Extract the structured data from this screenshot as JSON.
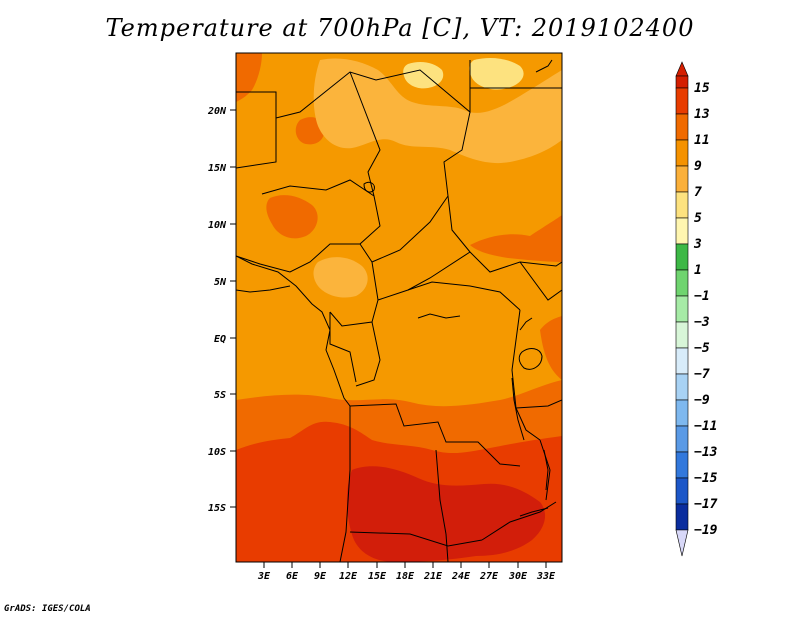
{
  "title": "Temperature at 700hPa [C], VT: 2019102400",
  "credit": "GrADS: IGES/COLA",
  "map": {
    "lat_labels": [
      "20N",
      "15N",
      "10N",
      "5N",
      "EQ",
      "5S",
      "10S",
      "15S"
    ],
    "lon_labels": [
      "3E",
      "6E",
      "9E",
      "12E",
      "15E",
      "18E",
      "21E",
      "24E",
      "27E",
      "30E",
      "33E"
    ]
  },
  "colorbar": {
    "labels": [
      "15",
      "13",
      "11",
      "9",
      "7",
      "5",
      "3",
      "1",
      "−1",
      "−3",
      "−5",
      "−7",
      "−9",
      "−11",
      "−13",
      "−15",
      "−17",
      "−19"
    ],
    "colors": [
      "#d41e00",
      "#e83c00",
      "#f06a00",
      "#f59200",
      "#fbb03a",
      "#fde27f",
      "#fff6b0",
      "#3db846",
      "#6fd46f",
      "#a6eba6",
      "#d8f6d8",
      "#d8ecfa",
      "#a8d2f4",
      "#7eb8ef",
      "#5a9ae6",
      "#3278dc",
      "#1c57c8",
      "#0a2d9e",
      "#0a0a6a"
    ]
  },
  "field_colors": {
    "t9_11": "#f59900",
    "t11_13": "#f06a00",
    "t13_15": "#e83c00",
    "t15_17": "#d21e0a",
    "t7_9": "#fbb43c",
    "t5_7": "#fde27f"
  }
}
